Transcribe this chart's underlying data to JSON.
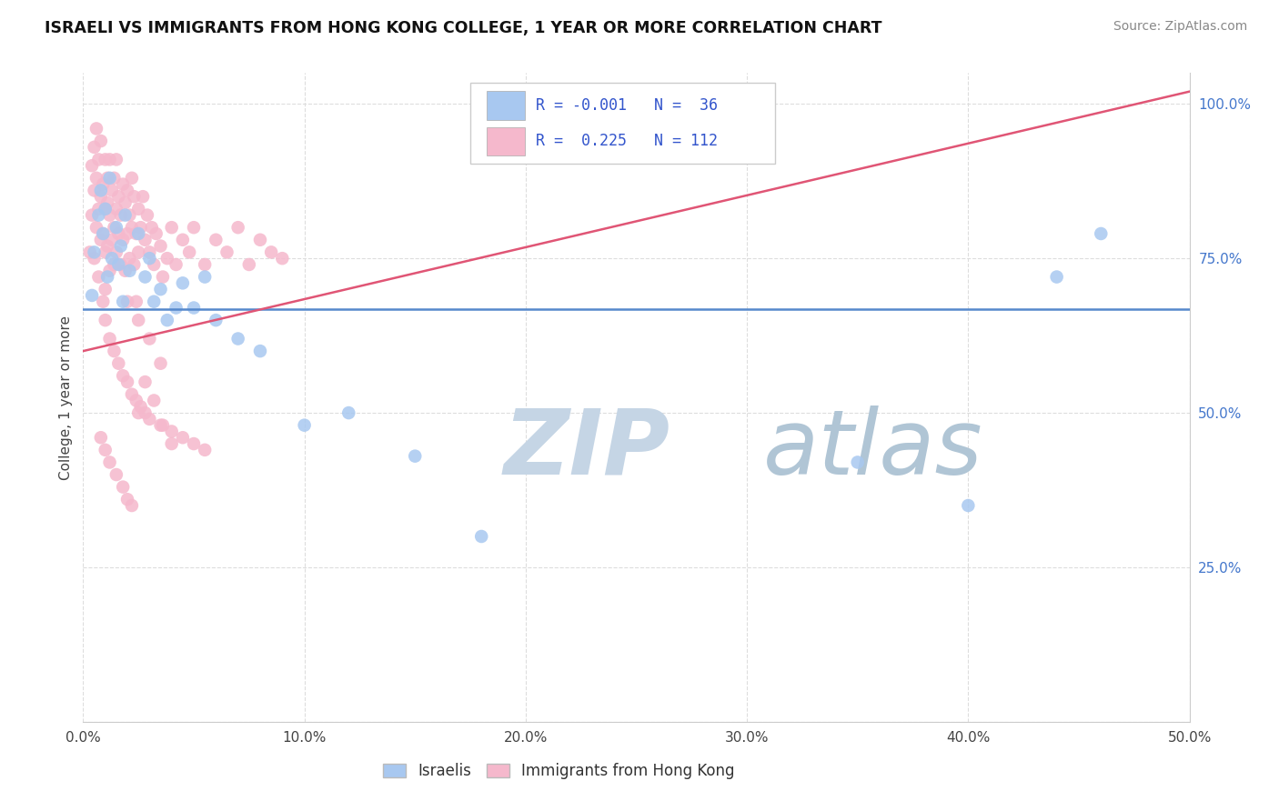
{
  "title": "ISRAELI VS IMMIGRANTS FROM HONG KONG COLLEGE, 1 YEAR OR MORE CORRELATION CHART",
  "source": "Source: ZipAtlas.com",
  "xlim": [
    0.0,
    0.5
  ],
  "ylim": [
    0.0,
    1.05
  ],
  "ylabel": "College, 1 year or more",
  "color_israeli": "#a8c8f0",
  "color_hk": "#f5b8cc",
  "trendline_color_israeli": "#5588cc",
  "trendline_color_hk": "#e05575",
  "watermark_zip": "ZIP",
  "watermark_atlas": "atlas",
  "watermark_color_zip": "#c8d8e8",
  "watermark_color_atlas": "#b0c8d8",
  "isr_trendline_y0": 0.668,
  "isr_trendline_y1": 0.668,
  "hk_trendline_y0": 0.6,
  "hk_trendline_y1": 1.02,
  "israelis_x": [
    0.004,
    0.005,
    0.007,
    0.008,
    0.009,
    0.01,
    0.011,
    0.012,
    0.013,
    0.015,
    0.016,
    0.017,
    0.018,
    0.019,
    0.021,
    0.025,
    0.028,
    0.03,
    0.032,
    0.035,
    0.038,
    0.042,
    0.045,
    0.05,
    0.055,
    0.06,
    0.07,
    0.08,
    0.1,
    0.12,
    0.15,
    0.18,
    0.35,
    0.4,
    0.44,
    0.46
  ],
  "israelis_y": [
    0.69,
    0.76,
    0.82,
    0.86,
    0.79,
    0.83,
    0.72,
    0.88,
    0.75,
    0.8,
    0.74,
    0.77,
    0.68,
    0.82,
    0.73,
    0.79,
    0.72,
    0.75,
    0.68,
    0.7,
    0.65,
    0.67,
    0.71,
    0.67,
    0.72,
    0.65,
    0.62,
    0.6,
    0.48,
    0.5,
    0.43,
    0.3,
    0.42,
    0.35,
    0.72,
    0.79
  ],
  "hk_x": [
    0.003,
    0.004,
    0.004,
    0.005,
    0.005,
    0.005,
    0.006,
    0.006,
    0.006,
    0.007,
    0.007,
    0.007,
    0.008,
    0.008,
    0.008,
    0.009,
    0.009,
    0.009,
    0.01,
    0.01,
    0.01,
    0.01,
    0.011,
    0.011,
    0.011,
    0.012,
    0.012,
    0.012,
    0.013,
    0.013,
    0.014,
    0.014,
    0.014,
    0.015,
    0.015,
    0.015,
    0.016,
    0.016,
    0.017,
    0.017,
    0.018,
    0.018,
    0.019,
    0.019,
    0.02,
    0.02,
    0.021,
    0.021,
    0.022,
    0.022,
    0.023,
    0.023,
    0.024,
    0.024,
    0.025,
    0.025,
    0.026,
    0.027,
    0.028,
    0.029,
    0.03,
    0.031,
    0.032,
    0.033,
    0.035,
    0.036,
    0.038,
    0.04,
    0.042,
    0.045,
    0.048,
    0.05,
    0.055,
    0.06,
    0.065,
    0.07,
    0.075,
    0.08,
    0.085,
    0.09,
    0.01,
    0.012,
    0.014,
    0.016,
    0.018,
    0.02,
    0.022,
    0.024,
    0.026,
    0.028,
    0.03,
    0.035,
    0.04,
    0.045,
    0.05,
    0.055,
    0.008,
    0.01,
    0.012,
    0.015,
    0.018,
    0.02,
    0.022,
    0.025,
    0.028,
    0.032,
    0.036,
    0.04,
    0.02,
    0.025,
    0.03,
    0.035
  ],
  "hk_y": [
    0.76,
    0.82,
    0.9,
    0.86,
    0.93,
    0.75,
    0.88,
    0.8,
    0.96,
    0.83,
    0.91,
    0.72,
    0.85,
    0.78,
    0.94,
    0.87,
    0.79,
    0.68,
    0.83,
    0.76,
    0.91,
    0.7,
    0.84,
    0.77,
    0.88,
    0.82,
    0.73,
    0.91,
    0.78,
    0.86,
    0.8,
    0.74,
    0.88,
    0.83,
    0.76,
    0.91,
    0.79,
    0.85,
    0.82,
    0.74,
    0.87,
    0.78,
    0.84,
    0.73,
    0.86,
    0.79,
    0.82,
    0.75,
    0.88,
    0.8,
    0.74,
    0.85,
    0.79,
    0.68,
    0.83,
    0.76,
    0.8,
    0.85,
    0.78,
    0.82,
    0.76,
    0.8,
    0.74,
    0.79,
    0.77,
    0.72,
    0.75,
    0.8,
    0.74,
    0.78,
    0.76,
    0.8,
    0.74,
    0.78,
    0.76,
    0.8,
    0.74,
    0.78,
    0.76,
    0.75,
    0.65,
    0.62,
    0.6,
    0.58,
    0.56,
    0.55,
    0.53,
    0.52,
    0.51,
    0.5,
    0.49,
    0.48,
    0.47,
    0.46,
    0.45,
    0.44,
    0.46,
    0.44,
    0.42,
    0.4,
    0.38,
    0.36,
    0.35,
    0.5,
    0.55,
    0.52,
    0.48,
    0.45,
    0.68,
    0.65,
    0.62,
    0.58
  ]
}
